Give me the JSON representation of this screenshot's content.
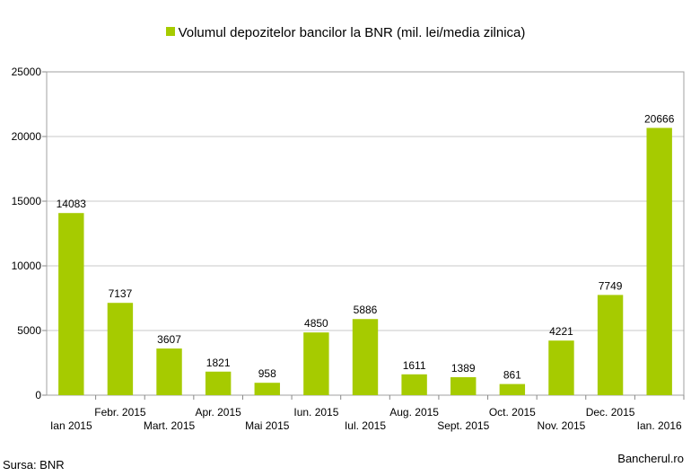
{
  "chart_data": {
    "type": "bar",
    "categories": [
      "Ian 2015",
      "Febr. 2015",
      "Mart. 2015",
      "Apr. 2015",
      "Mai 2015",
      "Iun. 2015",
      "Iul. 2015",
      "Aug. 2015",
      "Sept. 2015",
      "Oct. 2015",
      "Nov. 2015",
      "Dec. 2015",
      "Ian. 2016"
    ],
    "series": [
      {
        "name": "Volumul depozitelor bancilor la BNR (mil. lei/media zilnica)",
        "values": [
          14083,
          7137,
          3607,
          1821,
          958,
          4850,
          5886,
          1611,
          1389,
          861,
          4221,
          7749,
          20666
        ]
      }
    ],
    "ylim": [
      0,
      25000
    ],
    "yticks": [
      0,
      5000,
      10000,
      15000,
      20000,
      25000
    ],
    "grid": true,
    "legend_position": "top-center",
    "bar_color": "#a6cb00",
    "grid_color": "#c8c8c8"
  },
  "source": "Sursa: BNR",
  "brand": "Bancherul.ro"
}
